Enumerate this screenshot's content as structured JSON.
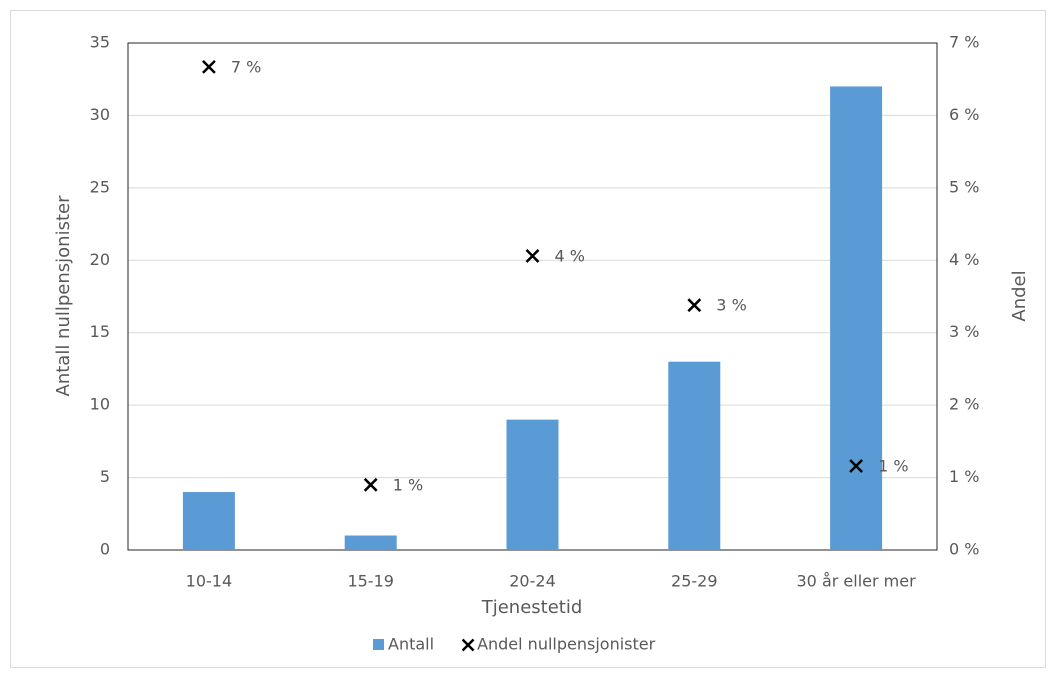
{
  "chart_data": {
    "type": "bar",
    "x_label": "Tjenestetid",
    "y_label": "Antall nullpensjonister",
    "y2_label": "Andel",
    "categories": [
      "10-14",
      "15-19",
      "20-24",
      "25-29",
      "30 år eller mer"
    ],
    "series": [
      {
        "name": "Antall",
        "color": "#5b9bd5",
        "values": [
          4,
          1,
          9,
          13,
          32
        ]
      },
      {
        "name": "Andel nullpensjonister",
        "type": "scatter",
        "axis": "y2",
        "color": "#000000",
        "values": [
          6.67,
          0.9,
          4.06,
          3.38,
          1.16
        ],
        "value_labels": [
          "7 %",
          "1 %",
          "4 %",
          "3 %",
          "1 %"
        ]
      }
    ],
    "ylim": [
      0,
      35
    ],
    "yticks": [
      0,
      5,
      10,
      15,
      20,
      25,
      30,
      35
    ],
    "y2lim": [
      0,
      7
    ],
    "y2ticks": [
      {
        "value": 0,
        "label": "0 %"
      },
      {
        "value": 1,
        "label": "1 %"
      },
      {
        "value": 2,
        "label": "2 %"
      },
      {
        "value": 3,
        "label": "3 %"
      },
      {
        "value": 4,
        "label": "4 %"
      },
      {
        "value": 5,
        "label": "5 %"
      },
      {
        "value": 6,
        "label": "6 %"
      },
      {
        "value": 7,
        "label": "7 %"
      }
    ],
    "grid": true,
    "legend": "bottom"
  }
}
